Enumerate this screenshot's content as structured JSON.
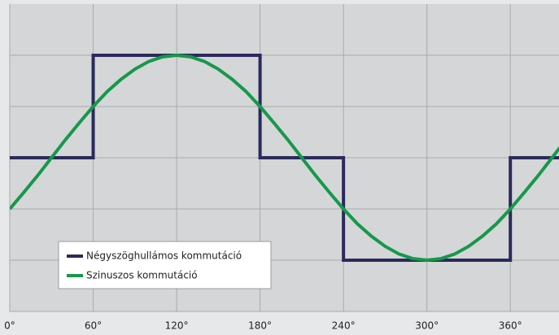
{
  "chart_data": {
    "type": "line",
    "series": [
      {
        "name": "Négyszöghullámos kommutáció",
        "color": "#2b2a5c",
        "x": [
          0,
          60,
          60,
          180,
          180,
          240,
          240,
          360,
          360,
          400
        ],
        "values": [
          0,
          0,
          2,
          2,
          0,
          0,
          -2,
          -2,
          0,
          0
        ]
      },
      {
        "name": "Szinuszos kommutáció",
        "color": "#16984a",
        "x": [
          0,
          10,
          20,
          30,
          40,
          50,
          60,
          70,
          80,
          90,
          100,
          110,
          120,
          130,
          140,
          150,
          160,
          170,
          180,
          190,
          200,
          210,
          220,
          230,
          240,
          250,
          260,
          270,
          280,
          290,
          300,
          310,
          320,
          330,
          340,
          350,
          360,
          370,
          380,
          390,
          400
        ],
        "values": [
          -1,
          -0.68,
          -0.35,
          0,
          0.35,
          0.68,
          1,
          1.29,
          1.53,
          1.73,
          1.88,
          1.97,
          2,
          1.97,
          1.88,
          1.73,
          1.53,
          1.29,
          1,
          0.68,
          0.35,
          0,
          -0.35,
          -0.68,
          -1,
          -1.29,
          -1.53,
          -1.73,
          -1.88,
          -1.97,
          -2,
          -1.97,
          -1.88,
          -1.73,
          -1.53,
          -1.29,
          -1,
          -0.68,
          -0.35,
          0,
          0.35
        ]
      }
    ],
    "xlim": [
      0,
      395
    ],
    "xticks": [
      {
        "value": 0,
        "label": "0°"
      },
      {
        "value": 60,
        "label": "60°"
      },
      {
        "value": 120,
        "label": "120°"
      },
      {
        "value": 180,
        "label": "180°"
      },
      {
        "value": 240,
        "label": "240°"
      },
      {
        "value": 300,
        "label": "300°"
      },
      {
        "value": 360,
        "label": "360°"
      }
    ],
    "ylim": [
      -3,
      3
    ],
    "yticks": [
      -2,
      -1,
      0,
      1,
      2
    ],
    "grid": true,
    "legend": "lower-left"
  }
}
